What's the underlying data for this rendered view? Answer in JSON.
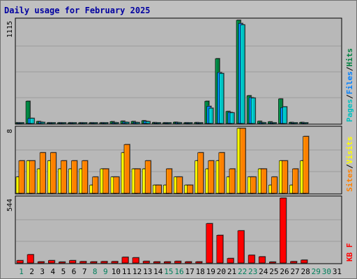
{
  "title": "Daily usage for February 2025",
  "colors": {
    "pages": "#00c0c0",
    "files": "#0080ff",
    "hits": "#008040",
    "visits": "#ffff00",
    "sites": "#ff8000",
    "kbytes": "#ff0000",
    "weekend_label": "#00805c",
    "weekday_label": "#000000",
    "plot_bg": "#b8b8b8",
    "grid": "#9c9c9c"
  },
  "chart_data": {
    "type": "bar",
    "title": "Daily usage for February 2025",
    "categories": [
      "1",
      "2",
      "3",
      "4",
      "5",
      "6",
      "7",
      "8",
      "9",
      "10",
      "11",
      "12",
      "13",
      "14",
      "15",
      "16",
      "17",
      "18",
      "19",
      "20",
      "21",
      "22",
      "23",
      "24",
      "25",
      "26",
      "27",
      "28",
      "29",
      "30",
      "31"
    ],
    "weekend_days": [
      1,
      8,
      9,
      15,
      16,
      22,
      23,
      29,
      30
    ],
    "panels": [
      {
        "id": "top",
        "y_max_label": "1115",
        "ymax": 1115,
        "legend": [
          "Pages",
          "/",
          "Files",
          "/",
          "Hits"
        ],
        "series": [
          {
            "name": "Hits",
            "values": [
              8,
              240,
              22,
              8,
              8,
              8,
              8,
              8,
              8,
              20,
              25,
              22,
              30,
              10,
              8,
              14,
              8,
              10,
              240,
              700,
              130,
              1115,
              300,
              24,
              18,
              265,
              12,
              12,
              0,
              0,
              0
            ]
          },
          {
            "name": "Files",
            "values": [
              5,
              55,
              16,
              4,
              5,
              5,
              4,
              4,
              4,
              10,
              15,
              12,
              24,
              5,
              5,
              10,
              5,
              5,
              185,
              550,
              120,
              1080,
              280,
              10,
              8,
              170,
              5,
              7,
              0,
              0,
              0
            ]
          },
          {
            "name": "Pages",
            "values": [
              4,
              55,
              12,
              3,
              4,
              4,
              3,
              3,
              3,
              8,
              12,
              10,
              20,
              4,
              4,
              8,
              4,
              4,
              165,
              540,
              115,
              1065,
              275,
              8,
              6,
              180,
              4,
              5,
              0,
              0,
              0
            ]
          }
        ]
      },
      {
        "id": "middle",
        "y_max_label": "8",
        "ymax": 8,
        "legend": [
          "Sites",
          "/",
          "Visits"
        ],
        "series": [
          {
            "name": "Visits",
            "values": [
              2,
              4,
              3,
              4,
              3,
              3,
              3,
              1,
              3,
              2,
              5,
              3,
              3,
              1,
              1,
              2,
              1,
              4,
              3,
              4,
              2,
              8,
              2,
              3,
              1,
              4,
              1,
              4,
              0,
              0,
              0
            ]
          },
          {
            "name": "Sites",
            "values": [
              4,
              4,
              5,
              5,
              4,
              4,
              4,
              2,
              3,
              2,
              6,
              3,
              4,
              1,
              3,
              2,
              1,
              5,
              4,
              5,
              3,
              8,
              2,
              3,
              2,
              4,
              3,
              7,
              0,
              0,
              0
            ]
          }
        ]
      },
      {
        "id": "bottom",
        "y_max_label": "544",
        "ymax": 544,
        "legend": [
          "KB F"
        ],
        "series": [
          {
            "name": "KB F",
            "values": [
              20,
              70,
              10,
              20,
              8,
              20,
              12,
              10,
              12,
              12,
              48,
              44,
              14,
              10,
              10,
              14,
              10,
              10,
              330,
              232,
              38,
              270,
              65,
              52,
              8,
              544,
              12,
              24,
              0,
              0,
              0
            ]
          }
        ]
      }
    ]
  }
}
